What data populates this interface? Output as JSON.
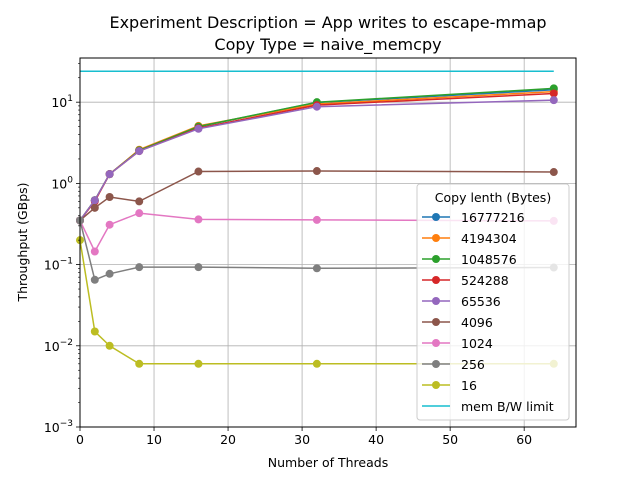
{
  "chart_data": {
    "type": "line",
    "title": [
      "Experiment Description = App writes to escape-mmap",
      "Copy Type = naive_memcpy"
    ],
    "xlabel": "Number of Threads",
    "ylabel": "Throughput (GBps)",
    "xlim": [
      0,
      67
    ],
    "ylim": [
      0.001,
      35
    ],
    "yscale": "log",
    "grid": true,
    "x_ticks": [
      0,
      10,
      20,
      30,
      40,
      50,
      60
    ],
    "y_ticks": [
      {
        "value": 0.001,
        "label": "10",
        "exp": "−3"
      },
      {
        "value": 0.01,
        "label": "10",
        "exp": "−2"
      },
      {
        "value": 0.1,
        "label": "10",
        "exp": "−1"
      },
      {
        "value": 1,
        "label": "10",
        "exp": "0"
      },
      {
        "value": 10,
        "label": "10",
        "exp": "1"
      }
    ],
    "legend": {
      "title": "Copy lenth (Bytes)",
      "position": "lower-right"
    },
    "x": [
      0,
      2,
      4,
      8,
      16,
      32,
      64
    ],
    "series": [
      {
        "name": "16777216",
        "color": "#1f77b4",
        "values": [
          0.35,
          0.62,
          1.3,
          2.55,
          5.0,
          9.9,
          14.2
        ]
      },
      {
        "name": "4194304",
        "color": "#ff7f0e",
        "values": [
          0.35,
          0.62,
          1.3,
          2.6,
          5.1,
          9.5,
          13.5
        ]
      },
      {
        "name": "1048576",
        "color": "#2ca02c",
        "values": [
          0.35,
          0.62,
          1.3,
          2.55,
          5.0,
          10.0,
          14.8
        ]
      },
      {
        "name": "524288",
        "color": "#d62728",
        "values": [
          0.35,
          0.6,
          1.3,
          2.5,
          4.8,
          9.2,
          12.8
        ]
      },
      {
        "name": "65536",
        "color": "#9467bd",
        "values": [
          0.35,
          0.62,
          1.3,
          2.5,
          4.7,
          8.8,
          10.6
        ]
      },
      {
        "name": "4096",
        "color": "#8c564b",
        "values": [
          0.35,
          0.5,
          0.68,
          0.6,
          1.4,
          1.42,
          1.38
        ]
      },
      {
        "name": "1024",
        "color": "#e377c2",
        "values": [
          0.35,
          0.145,
          0.31,
          0.43,
          0.36,
          0.355,
          0.345
        ]
      },
      {
        "name": "256",
        "color": "#7f7f7f",
        "values": [
          0.35,
          0.065,
          0.077,
          0.093,
          0.093,
          0.09,
          0.092
        ]
      },
      {
        "name": "16",
        "color": "#bcbd22",
        "values": [
          0.2,
          0.015,
          0.01,
          0.006,
          0.006,
          0.006,
          0.006
        ]
      }
    ],
    "reference_line": {
      "name": "mem B/W limit",
      "color": "#17becf",
      "y": 24,
      "x_range": [
        0,
        64
      ]
    }
  }
}
